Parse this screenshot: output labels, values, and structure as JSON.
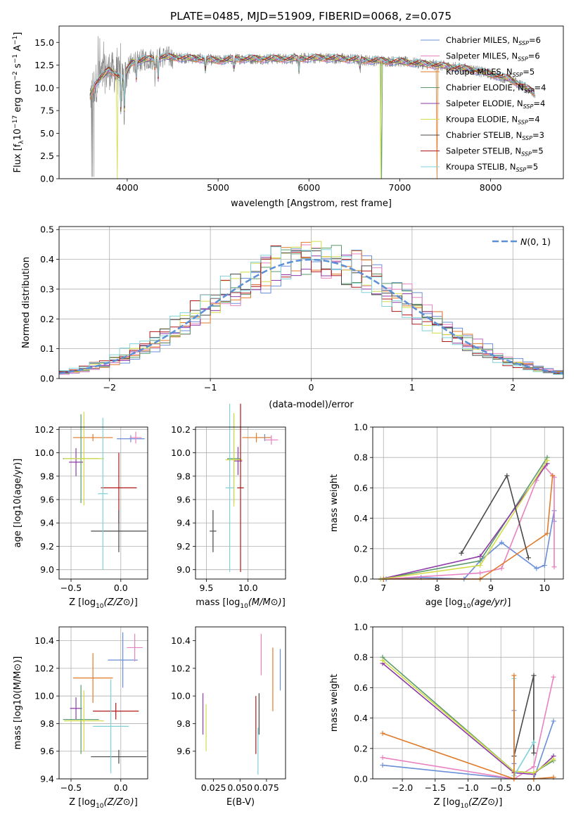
{
  "figure_title": "PLATE=0485, MJD=51909, FIBERID=0068, z=0.075",
  "colors": {
    "chabrier_miles": "#6a8fd8",
    "salpeter_miles": "#e882c0",
    "kroupa_miles": "#e07b2a",
    "chabrier_elodie": "#5a9a6a",
    "salpeter_elodie": "#8e3aa8",
    "kroupa_elodie": "#d2dc4a",
    "chabrier_stelib": "#4a4a4a",
    "salpeter_stelib": "#b01818",
    "kroupa_stelib": "#7fd3d8",
    "data": "#808080",
    "normal": "#5b8fd6"
  },
  "chart_data": [
    {
      "id": "spectrum",
      "type": "line",
      "xlabel": "wavelength [Angstrom, rest frame]",
      "ylabel": "Flux [f_λ 10^-17 erg cm^-2 s^-1 A^-1]",
      "xlim": [
        3250,
        8800
      ],
      "ylim": [
        0,
        16.8
      ],
      "xticks": [
        4000,
        5000,
        6000,
        7000,
        8000
      ],
      "yticks": [
        0.0,
        2.5,
        5.0,
        7.5,
        10.0,
        12.5,
        15.0
      ],
      "legend_position": "top-right",
      "legend": [
        {
          "key": "chabrier_miles",
          "base": "Chabrier MILES, N",
          "sub": "SSP",
          "tail": "=6"
        },
        {
          "key": "salpeter_miles",
          "base": "Salpeter MILES, N",
          "sub": "SSP",
          "tail": "=6"
        },
        {
          "key": "kroupa_miles",
          "base": "Kroupa MILES, N",
          "sub": "SSP",
          "tail": "=5"
        },
        {
          "key": "chabrier_elodie",
          "base": "Chabrier ELODIE, N",
          "sub": "SSP",
          "tail": "=4"
        },
        {
          "key": "salpeter_elodie",
          "base": "Salpeter ELODIE, N",
          "sub": "SSP",
          "tail": "=4"
        },
        {
          "key": "kroupa_elodie",
          "base": "Kroupa ELODIE, N",
          "sub": "SSP",
          "tail": "=4"
        },
        {
          "key": "chabrier_stelib",
          "base": "Chabrier STELIB, N",
          "sub": "SSP",
          "tail": "=3"
        },
        {
          "key": "salpeter_stelib",
          "base": "Salpeter STELIB, N",
          "sub": "SSP",
          "tail": "=5"
        },
        {
          "key": "kroupa_stelib",
          "base": "Kroupa STELIB, N",
          "sub": "SSP",
          "tail": "=5"
        }
      ],
      "continuum": {
        "x": [
          3580,
          3650,
          3800,
          3950,
          4050,
          4200,
          4400,
          4600,
          4800,
          5000,
          5200,
          5500,
          5800,
          6100,
          6400,
          6700,
          7000,
          7400,
          7800,
          8200,
          8500
        ],
        "y": [
          8.8,
          10.5,
          12.0,
          11.0,
          12.8,
          13.1,
          13.4,
          13.3,
          13.2,
          13.0,
          13.2,
          13.2,
          13.2,
          13.3,
          13.2,
          13.0,
          12.9,
          12.5,
          12.0,
          11.0,
          9.4
        ]
      },
      "absorption_lines": [
        {
          "x": 3933,
          "y": 6.0
        },
        {
          "x": 3968,
          "y": 6.8
        },
        {
          "x": 4101,
          "y": 10.8
        },
        {
          "x": 4305,
          "y": 11.3
        },
        {
          "x": 4340,
          "y": 10.9
        },
        {
          "x": 4861,
          "y": 11.8
        },
        {
          "x": 5175,
          "y": 11.5
        },
        {
          "x": 5890,
          "y": 11.7
        },
        {
          "x": 6563,
          "y": 12.0
        }
      ],
      "cutoffs": [
        {
          "series": "kroupa_elodie",
          "x": 3890
        },
        {
          "series": "kroupa_elodie",
          "x": 6790
        },
        {
          "series": "chabrier_elodie",
          "x": 6800
        },
        {
          "series": "kroupa_miles",
          "x": 7410
        }
      ]
    },
    {
      "id": "residuals",
      "type": "line",
      "xlabel": "(data-model)/error",
      "ylabel": "Normed distribution",
      "xlim": [
        -2.5,
        2.5
      ],
      "ylim": [
        0,
        0.51
      ],
      "xticks": [
        -2,
        -1,
        0,
        1,
        2
      ],
      "yticks": [
        0.0,
        0.1,
        0.2,
        0.3,
        0.4,
        0.5
      ],
      "grid": true,
      "legend_position": "top-right",
      "legend": [
        {
          "key": "normal",
          "label": "N(0, 1)"
        }
      ],
      "bin_width": 0.1,
      "bin_start": -2.5
    },
    {
      "id": "age_vs_z",
      "type": "scatter",
      "xlabel": "Z [log10(Z/Z⊙)]",
      "ylabel": "age [log10(age/yr)]",
      "xlim": [
        -0.62,
        0.27
      ],
      "ylim": [
        8.92,
        10.22
      ],
      "xticks": [
        -0.5,
        0.0
      ],
      "yticks": [
        9.0,
        9.2,
        9.4,
        9.6,
        9.8,
        10.0,
        10.2
      ],
      "grid": true,
      "points": [
        {
          "series": "chabrier_miles",
          "x": 0.1,
          "y": 10.12,
          "xe": 0.14,
          "ye": 0.03
        },
        {
          "series": "salpeter_miles",
          "x": 0.15,
          "y": 10.13,
          "xe": 0.06,
          "ye": 0.05
        },
        {
          "series": "kroupa_miles",
          "x": -0.28,
          "y": 10.13,
          "xe": 0.2,
          "ye": 0.03
        },
        {
          "series": "salpeter_elodie",
          "x": -0.45,
          "y": 9.92,
          "xe": 0.07,
          "ye": 0.12
        },
        {
          "series": "chabrier_elodie",
          "x": -0.4,
          "y": 9.95,
          "xe": 0.18,
          "ye": 0.38
        },
        {
          "series": "kroupa_elodie",
          "x": -0.37,
          "y": 9.95,
          "xe": 0.2,
          "ye": 0.4
        },
        {
          "series": "salpeter_stelib",
          "x": -0.02,
          "y": 9.7,
          "xe": 0.18,
          "ye": 0.3
        },
        {
          "series": "chabrier_stelib",
          "x": -0.02,
          "y": 9.33,
          "xe": 0.28,
          "ye": 0.18
        },
        {
          "series": "kroupa_stelib",
          "x": -0.18,
          "y": 9.65,
          "xe": 0.05,
          "ye": 0.65
        }
      ]
    },
    {
      "id": "age_vs_mass",
      "type": "scatter",
      "xlabel": "mass [log10(M/M⊙)]",
      "ylabel": "",
      "xlim": [
        9.37,
        10.45
      ],
      "ylim": [
        8.92,
        10.22
      ],
      "xticks": [
        9.5,
        10.0
      ],
      "yticks": [
        9.0,
        9.2,
        9.4,
        9.6,
        9.8,
        10.0,
        10.2
      ],
      "grid": true,
      "points": [
        {
          "series": "chabrier_miles",
          "x": 10.2,
          "y": 10.13,
          "xe": 0.08,
          "ye": 0.03
        },
        {
          "series": "salpeter_miles",
          "x": 10.28,
          "y": 10.11,
          "xe": 0.08,
          "ye": 0.04
        },
        {
          "series": "kroupa_miles",
          "x": 10.1,
          "y": 10.13,
          "xe": 0.17,
          "ye": 0.04
        },
        {
          "series": "salpeter_elodie",
          "x": 9.88,
          "y": 9.93,
          "xe": 0.05,
          "ye": 0.12
        },
        {
          "series": "chabrier_elodie",
          "x": 9.83,
          "y": 9.95,
          "xe": 0.08,
          "ye": 0.38
        },
        {
          "series": "kroupa_elodie",
          "x": 9.83,
          "y": 9.94,
          "xe": 0.1,
          "ye": 0.4
        },
        {
          "series": "salpeter_stelib",
          "x": 9.91,
          "y": 9.7,
          "xe": 0.04,
          "ye": 0.72
        },
        {
          "series": "chabrier_stelib",
          "x": 9.58,
          "y": 9.33,
          "xe": 0.04,
          "ye": 0.18
        },
        {
          "series": "kroupa_stelib",
          "x": 9.78,
          "y": 9.7,
          "xe": 0.05,
          "ye": 0.72
        }
      ]
    },
    {
      "id": "weight_vs_age",
      "type": "line",
      "xlabel": "age [log10(age/yr)]",
      "ylabel": "mass weight",
      "xlim": [
        6.8,
        10.35
      ],
      "ylim": [
        0,
        1.0
      ],
      "xticks": [
        7,
        8,
        9,
        10
      ],
      "yticks": [
        0.0,
        0.2,
        0.4,
        0.6,
        0.8,
        1.0
      ],
      "grid": true,
      "series": [
        {
          "series": "chabrier_miles",
          "x": [
            7.05,
            7.7,
            8.5,
            8.8,
            9.2,
            9.85,
            10.0,
            10.18,
            10.18
          ],
          "y": [
            0.0,
            0.01,
            0.0,
            0.12,
            0.24,
            0.07,
            0.09,
            0.45,
            0.38
          ]
        },
        {
          "series": "salpeter_miles",
          "x": [
            7.0,
            8.8,
            9.2,
            9.85,
            10.0,
            10.18,
            10.18
          ],
          "y": [
            0.0,
            0.04,
            0.07,
            0.65,
            0.74,
            0.67,
            0.08
          ]
        },
        {
          "series": "kroupa_miles",
          "x": [
            7.0,
            8.8,
            10.05,
            10.15,
            10.15
          ],
          "y": [
            0.0,
            0.0,
            0.3,
            0.68,
            0.68
          ]
        },
        {
          "series": "chabrier_elodie",
          "x": [
            6.95,
            8.8,
            10.05
          ],
          "y": [
            0.0,
            0.12,
            0.8
          ]
        },
        {
          "series": "salpeter_elodie",
          "x": [
            6.95,
            8.8,
            10.05
          ],
          "y": [
            0.0,
            0.15,
            0.76
          ]
        },
        {
          "series": "kroupa_elodie",
          "x": [
            6.95,
            8.8,
            10.05
          ],
          "y": [
            0.0,
            0.09,
            0.78
          ]
        },
        {
          "series": "chabrier_stelib",
          "x": [
            8.45,
            9.3,
            9.7
          ],
          "y": [
            0.17,
            0.68,
            0.14
          ]
        }
      ]
    },
    {
      "id": "mass_vs_z",
      "type": "scatter",
      "xlabel": "Z [log10(Z/Z⊙)]",
      "ylabel": "mass [log10(M/M⊙)]",
      "xlim": [
        -0.62,
        0.27
      ],
      "ylim": [
        9.4,
        10.5
      ],
      "xticks": [
        -0.5,
        0.0
      ],
      "yticks": [
        9.4,
        9.6,
        9.8,
        10.0,
        10.2,
        10.4
      ],
      "grid": true,
      "points": [
        {
          "series": "chabrier_miles",
          "x": 0.02,
          "y": 10.26,
          "xe": 0.15,
          "ye": 0.2
        },
        {
          "series": "salpeter_miles",
          "x": 0.14,
          "y": 10.35,
          "xe": 0.08,
          "ye": 0.1
        },
        {
          "series": "kroupa_miles",
          "x": -0.28,
          "y": 10.13,
          "xe": 0.2,
          "ye": 0.18
        },
        {
          "series": "salpeter_elodie",
          "x": -0.45,
          "y": 9.91,
          "xe": 0.06,
          "ye": 0.08
        },
        {
          "series": "chabrier_elodie",
          "x": -0.4,
          "y": 9.83,
          "xe": 0.18,
          "ye": 0.25
        },
        {
          "series": "kroupa_elodie",
          "x": -0.37,
          "y": 9.82,
          "xe": 0.2,
          "ye": 0.22
        },
        {
          "series": "salpeter_stelib",
          "x": -0.05,
          "y": 9.89,
          "xe": 0.23,
          "ye": 0.06
        },
        {
          "series": "chabrier_stelib",
          "x": -0.02,
          "y": 9.56,
          "xe": 0.28,
          "ye": 0.05
        },
        {
          "series": "kroupa_stelib",
          "x": -0.1,
          "y": 9.78,
          "xe": 0.18,
          "ye": 0.34
        }
      ]
    },
    {
      "id": "mass_vs_ebv",
      "type": "scatter",
      "xlabel": "E(B-V)",
      "ylabel": "",
      "xlim": [
        0.008,
        0.093
      ],
      "ylim": [
        9.4,
        10.5
      ],
      "xticks": [
        0.025,
        0.05,
        0.075
      ],
      "xticklabels": [
        "0.025",
        "0.050",
        "0.075"
      ],
      "yticks": [
        9.6,
        9.8,
        10.0,
        10.2,
        10.4
      ],
      "grid": false,
      "points": [
        {
          "series": "chabrier_miles",
          "x": 0.088,
          "y": 10.19,
          "ye": 0.15
        },
        {
          "series": "salpeter_miles",
          "x": 0.07,
          "y": 10.3,
          "ye": 0.15
        },
        {
          "series": "kroupa_miles",
          "x": 0.081,
          "y": 10.12,
          "ye": 0.23
        },
        {
          "series": "salpeter_elodie",
          "x": 0.015,
          "y": 9.87,
          "ye": 0.15
        },
        {
          "series": "kroupa_elodie",
          "x": 0.018,
          "y": 9.77,
          "ye": 0.17
        },
        {
          "series": "chabrier_stelib",
          "x": 0.068,
          "y": 9.87,
          "ye": 0.15
        },
        {
          "series": "salpeter_stelib",
          "x": 0.065,
          "y": 9.79,
          "ye": 0.21
        },
        {
          "series": "kroupa_stelib",
          "x": 0.067,
          "y": 9.6,
          "ye": 0.17
        }
      ]
    },
    {
      "id": "weight_vs_z",
      "type": "line",
      "xlabel": "Z [log10(Z/Z⊙)]",
      "ylabel": "mass weight",
      "xlim": [
        -2.45,
        0.45
      ],
      "ylim": [
        0,
        1.0
      ],
      "xticks": [
        -2.0,
        -1.5,
        -1.0,
        -0.5,
        0.0
      ],
      "yticks": [
        0.0,
        0.2,
        0.4,
        0.6,
        0.8,
        1.0
      ],
      "grid": true,
      "series": [
        {
          "series": "chabrier_miles",
          "x": [
            -2.3,
            -0.3,
            0.0,
            0.3
          ],
          "y": [
            0.09,
            0.0,
            0.0,
            0.38
          ]
        },
        {
          "series": "salpeter_miles",
          "x": [
            -2.3,
            -0.3,
            0.0,
            0.3
          ],
          "y": [
            0.14,
            0.0,
            0.08,
            0.67
          ]
        },
        {
          "series": "kroupa_miles",
          "x": [
            -2.3,
            -0.3,
            0.0,
            0.3
          ],
          "y": [
            0.3,
            0.0,
            0.0,
            0.01
          ]
        },
        {
          "series": "chabrier_elodie",
          "x": [
            -2.3,
            -0.3,
            0.0,
            0.3
          ],
          "y": [
            0.8,
            0.05,
            0.04,
            0.12
          ]
        },
        {
          "series": "salpeter_elodie",
          "x": [
            -2.3,
            -0.3,
            0.0,
            0.3
          ],
          "y": [
            0.76,
            0.04,
            0.03,
            0.15
          ]
        },
        {
          "series": "kroupa_elodie",
          "x": [
            -2.3,
            -0.3,
            0.0,
            0.3
          ],
          "y": [
            0.78,
            0.05,
            0.04,
            0.13
          ]
        },
        {
          "series": "chabrier_stelib",
          "x": [
            -0.3,
            0.0,
            0.0
          ],
          "y": [
            0.15,
            0.68,
            0.17
          ]
        },
        {
          "series": "kroupa_stelib",
          "x": [
            -0.3,
            -0.3,
            0.0
          ],
          "y": [
            0.66,
            0.02,
            0.24
          ]
        },
        {
          "series": "chabrier_miles",
          "x": [
            -0.3,
            -0.3
          ],
          "y": [
            0.45,
            0.1
          ]
        },
        {
          "series": "kroupa_miles",
          "x": [
            -0.3,
            -0.3
          ],
          "y": [
            0.68,
            0.0
          ]
        }
      ]
    }
  ]
}
